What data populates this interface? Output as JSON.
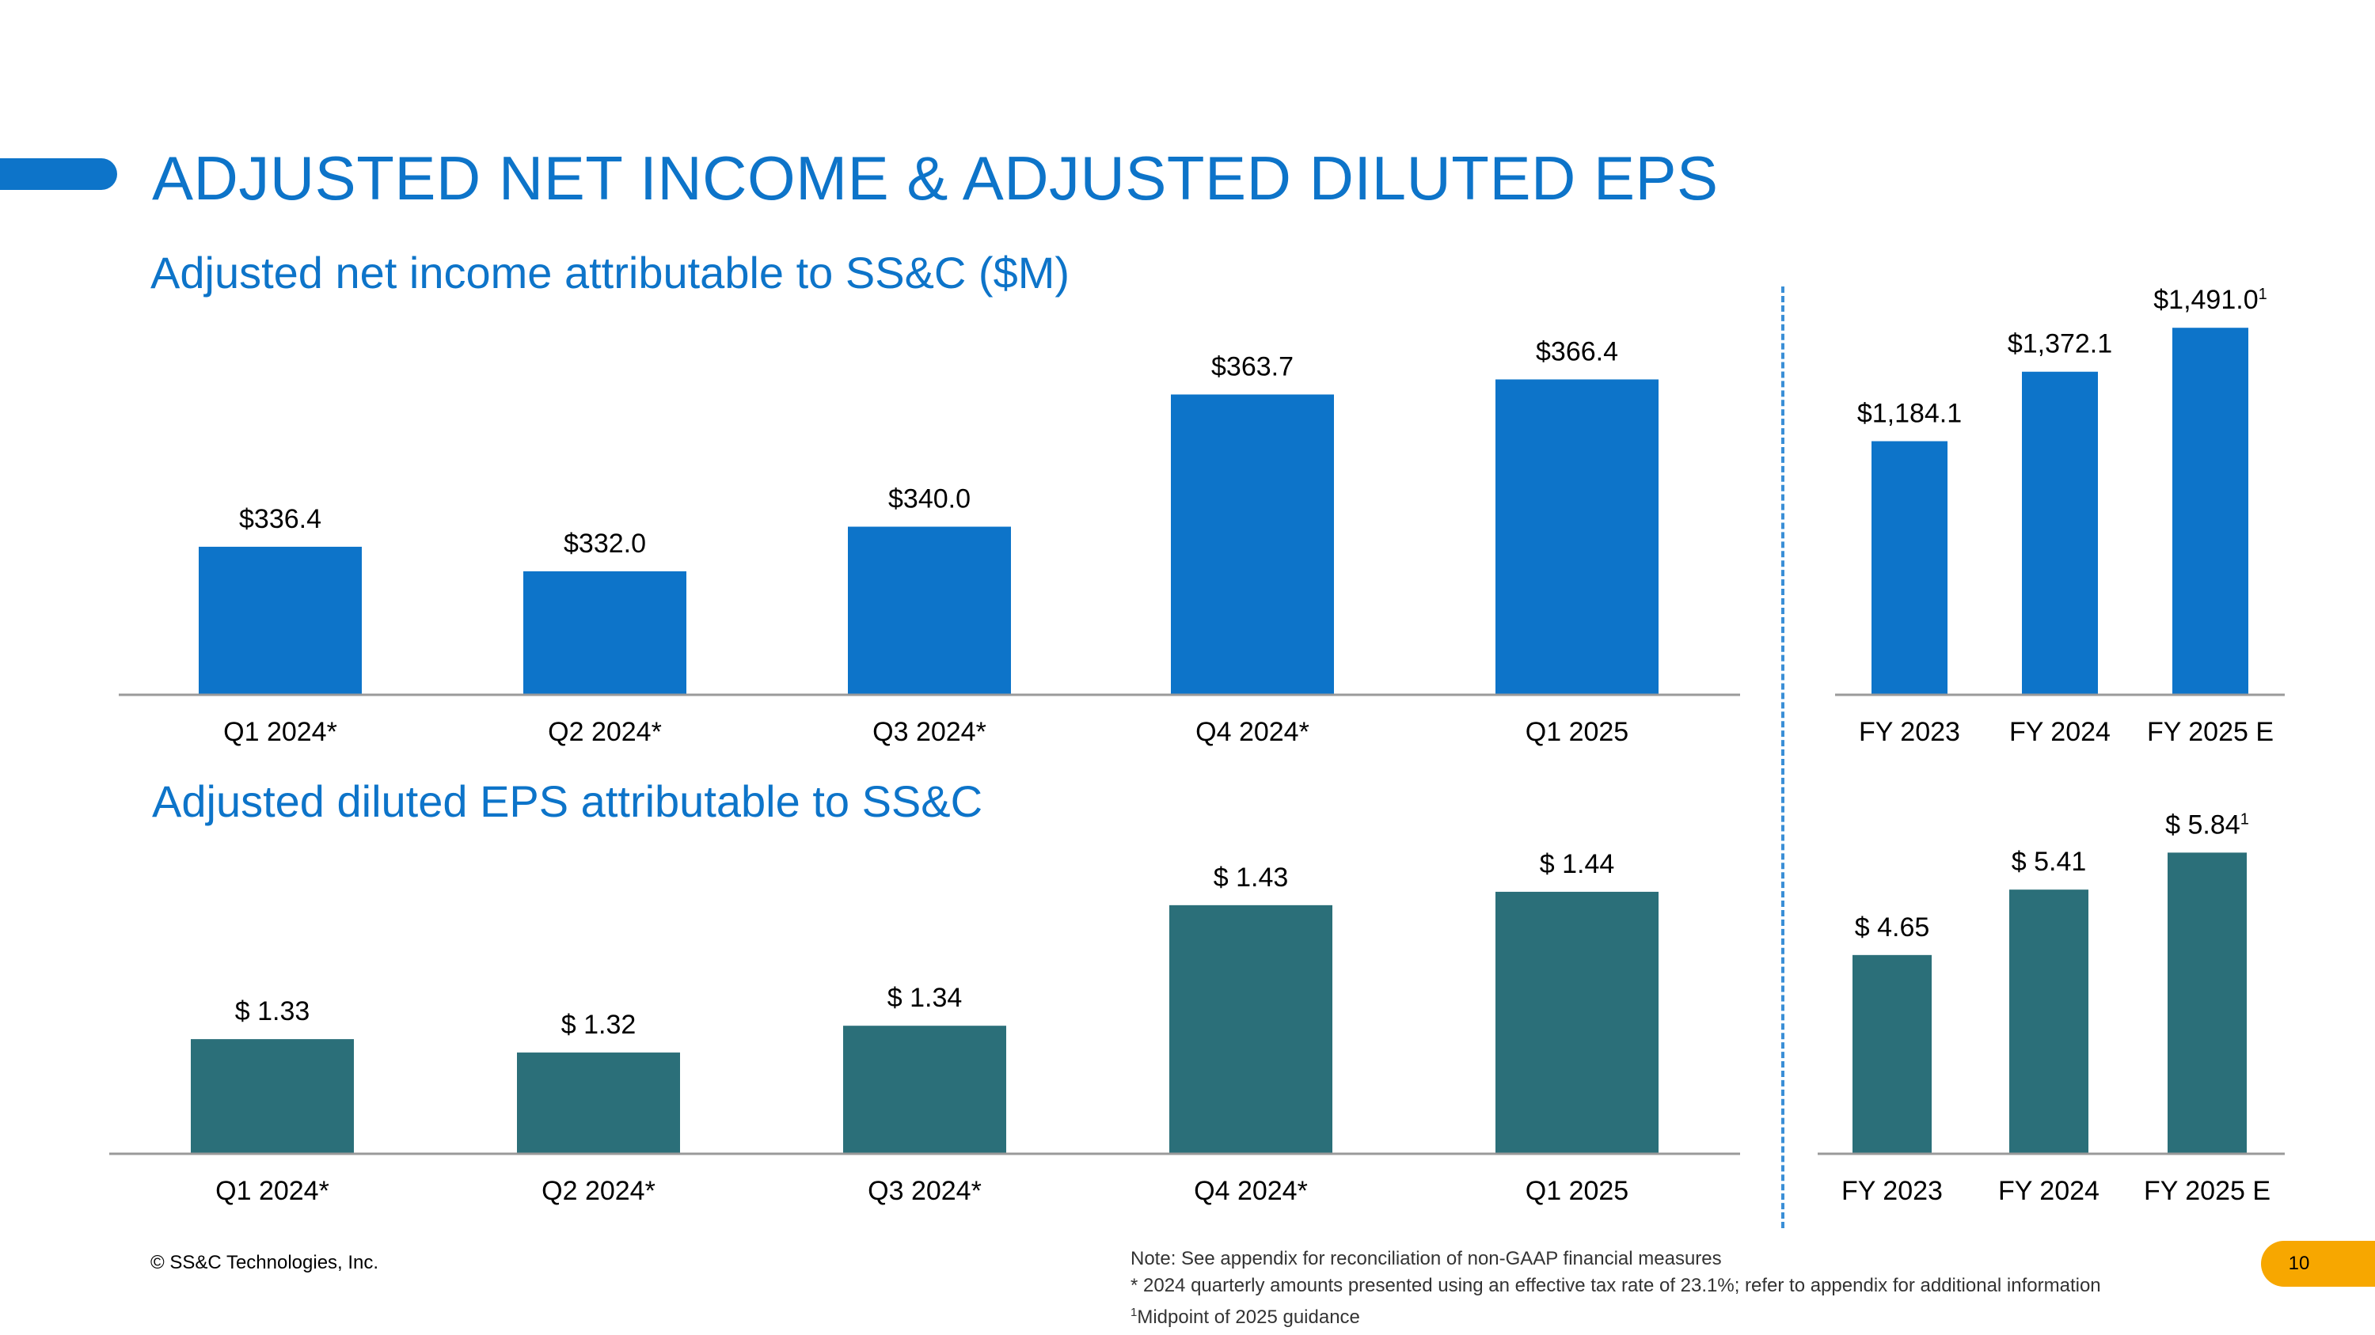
{
  "title": "ADJUSTED NET INCOME & ADJUSTED DILUTED EPS",
  "subtitle_income": "Adjusted net income attributable to SS&C ($M)",
  "subtitle_eps": "Adjusted diluted EPS attributable to SS&C",
  "colors": {
    "income": "#0d74c9",
    "eps": "#2b6f79",
    "accent": "#0d74c9",
    "page_badge": "#f7a700"
  },
  "chart_data": [
    {
      "id": "income-quarterly",
      "type": "bar",
      "title": "Adjusted net income attributable to SS&C ($M)",
      "categories": [
        "Q1 2024*",
        "Q2 2024*",
        "Q3 2024*",
        "Q4 2024*",
        "Q1 2025"
      ],
      "values": [
        336.4,
        332.0,
        340.0,
        363.7,
        366.4
      ],
      "labels": [
        "$336.4",
        "$332.0",
        "$340.0",
        "$363.7",
        "$366.4"
      ],
      "label_sup": [
        "",
        "",
        "",
        "",
        ""
      ],
      "ylim": [
        310,
        372
      ]
    },
    {
      "id": "income-annual",
      "type": "bar",
      "categories": [
        "FY 2023",
        "FY 2024",
        "FY 2025 E"
      ],
      "values": [
        1184.1,
        1372.1,
        1491.0
      ],
      "labels": [
        "$1,184.1",
        "$1,372.1",
        "$1,491.0"
      ],
      "label_sup": [
        "",
        "",
        "1"
      ],
      "ylim": [
        500,
        1500
      ]
    },
    {
      "id": "eps-quarterly",
      "type": "bar",
      "title": "Adjusted diluted EPS attributable to SS&C",
      "categories": [
        "Q1 2024*",
        "Q2 2024*",
        "Q3 2024*",
        "Q4 2024*",
        "Q1 2025"
      ],
      "values": [
        1.33,
        1.32,
        1.34,
        1.43,
        1.44
      ],
      "labels": [
        "$ 1.33",
        "$ 1.32",
        "$ 1.34",
        "$ 1.43",
        "$ 1.44"
      ],
      "label_sup": [
        "",
        "",
        "",
        "",
        ""
      ],
      "ylim": [
        1.245,
        1.45
      ]
    },
    {
      "id": "eps-annual",
      "type": "bar",
      "categories": [
        "FY 2023",
        "FY 2024",
        "FY 2025 E"
      ],
      "values": [
        4.65,
        5.41,
        5.84
      ],
      "labels": [
        "$ 4.65",
        "$ 5.41",
        "$ 5.84"
      ],
      "label_sup": [
        "",
        "",
        "1"
      ],
      "ylim": [
        2.35,
        6.0
      ]
    }
  ],
  "footer": {
    "copyright": "© SS&C Technologies, Inc.",
    "note": "Note: See appendix for reconciliation of non-GAAP financial measures",
    "asterisk_note": "* 2024 quarterly amounts presented using an effective tax rate of 23.1%; refer to appendix for additional information",
    "footnote_marker": "1",
    "footnote_text": "Midpoint of 2025 guidance",
    "page_number": "10"
  }
}
